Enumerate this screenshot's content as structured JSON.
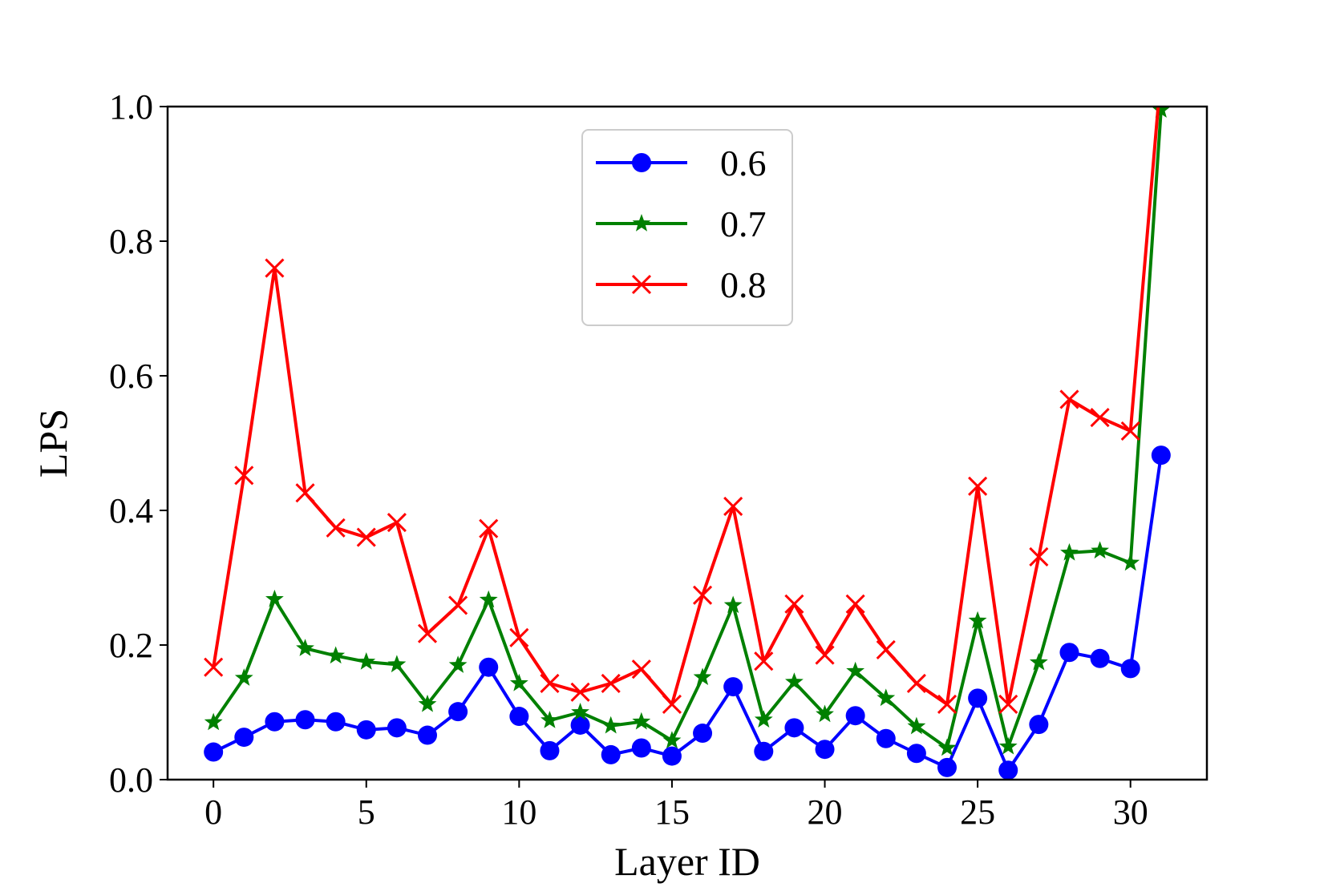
{
  "chart_data": {
    "type": "line",
    "title": "",
    "xlabel": "Layer ID",
    "ylabel": "LPS",
    "xlim": [
      -1.5,
      32.5
    ],
    "ylim": [
      0.0,
      1.0
    ],
    "xticks": [
      0,
      5,
      10,
      15,
      20,
      25,
      30
    ],
    "xtick_labels": [
      "0",
      "5",
      "10",
      "15",
      "20",
      "25",
      "30"
    ],
    "yticks": [
      0.0,
      0.2,
      0.4,
      0.6,
      0.8,
      1.0
    ],
    "ytick_labels": [
      "0.0",
      "0.2",
      "0.4",
      "0.6",
      "0.8",
      "1.0"
    ],
    "grid": false,
    "legend_position": "top-center",
    "x": [
      0,
      1,
      2,
      3,
      4,
      5,
      6,
      7,
      8,
      9,
      10,
      11,
      12,
      13,
      14,
      15,
      16,
      17,
      18,
      19,
      20,
      21,
      22,
      23,
      24,
      25,
      26,
      27,
      28,
      29,
      30,
      31
    ],
    "series": [
      {
        "name": "0.6",
        "color": "#0000ff",
        "marker": "circle",
        "values": [
          0.041,
          0.063,
          0.086,
          0.089,
          0.086,
          0.074,
          0.077,
          0.066,
          0.101,
          0.167,
          0.094,
          0.043,
          0.081,
          0.037,
          0.047,
          0.035,
          0.069,
          0.138,
          0.042,
          0.077,
          0.045,
          0.095,
          0.061,
          0.039,
          0.018,
          0.121,
          0.014,
          0.082,
          0.189,
          0.18,
          0.165,
          0.482
        ]
      },
      {
        "name": "0.7",
        "color": "#008000",
        "marker": "star",
        "values": [
          0.085,
          0.151,
          0.268,
          0.195,
          0.184,
          0.175,
          0.171,
          0.112,
          0.17,
          0.267,
          0.143,
          0.088,
          0.1,
          0.08,
          0.086,
          0.058,
          0.152,
          0.259,
          0.089,
          0.145,
          0.097,
          0.161,
          0.121,
          0.079,
          0.047,
          0.236,
          0.049,
          0.174,
          0.337,
          0.34,
          0.322,
          0.995
        ]
      },
      {
        "name": "0.8",
        "color": "#ff0000",
        "marker": "x",
        "values": [
          0.167,
          0.452,
          0.76,
          0.426,
          0.374,
          0.36,
          0.382,
          0.217,
          0.259,
          0.373,
          0.211,
          0.143,
          0.13,
          0.143,
          0.164,
          0.112,
          0.274,
          0.406,
          0.176,
          0.261,
          0.185,
          0.261,
          0.193,
          0.143,
          0.112,
          0.436,
          0.112,
          0.331,
          0.565,
          0.538,
          0.518,
          1.05
        ]
      }
    ]
  }
}
